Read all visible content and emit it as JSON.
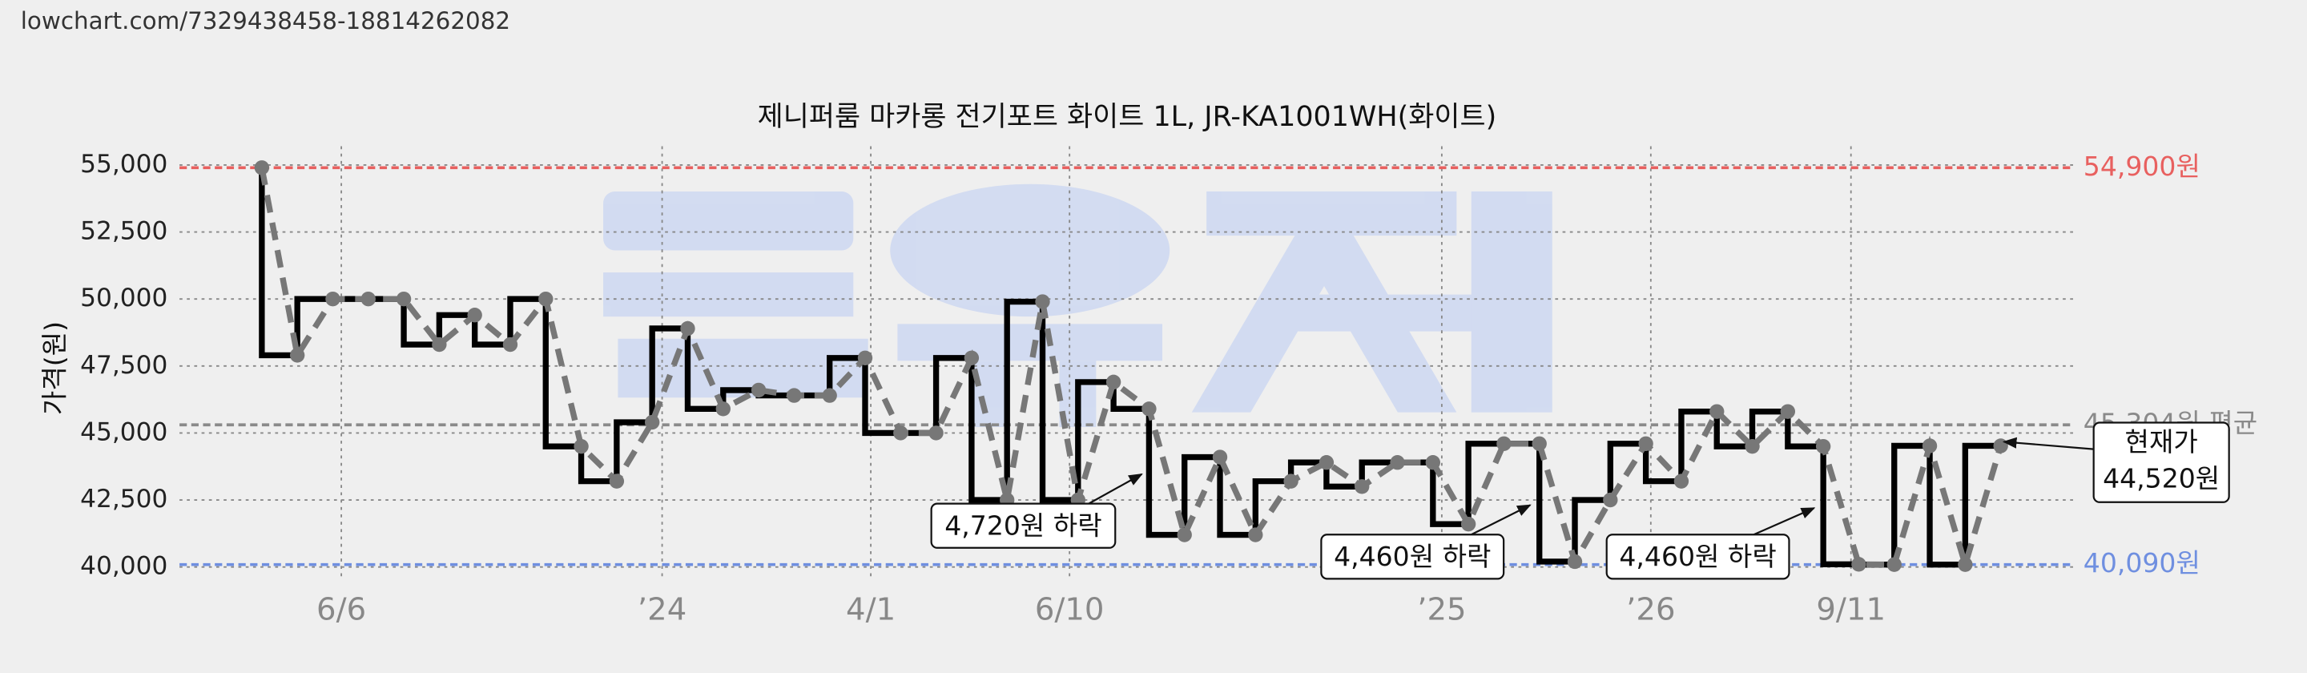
{
  "chart_data": {
    "type": "step-line",
    "source_url": "lowchart.com/7329438458-18814262082",
    "title": "제니퍼룸 마카롱 전기포트 화이트 1L, JR-KA1001WH(화이트)",
    "y_label": "가격(원)",
    "x": [
      0,
      1,
      2,
      3,
      4,
      5,
      6,
      7,
      8,
      9,
      10,
      11,
      12,
      13,
      14,
      15,
      16,
      17,
      18,
      19,
      20,
      21,
      22,
      23,
      24,
      25,
      26,
      27,
      28,
      29,
      30,
      31,
      32,
      33,
      34,
      35,
      36,
      37,
      38,
      39,
      40,
      41,
      42,
      43,
      44,
      45,
      46,
      47,
      48,
      49
    ],
    "values": [
      54900,
      47900,
      50000,
      50000,
      50000,
      48300,
      49400,
      48300,
      50000,
      44500,
      43200,
      45400,
      48900,
      45900,
      46600,
      46400,
      46400,
      47800,
      45000,
      45000,
      47800,
      42500,
      49900,
      42500,
      46900,
      45900,
      41200,
      44100,
      41200,
      43200,
      43900,
      43000,
      43900,
      43900,
      41600,
      44600,
      44600,
      40200,
      42500,
      44600,
      43200,
      45800,
      44500,
      45800,
      44500,
      40100,
      40090,
      44520,
      40090,
      44520
    ],
    "xlim": [
      -2.32,
      51.08
    ],
    "xticks": [
      {
        "value": 2.24,
        "label": "6/6"
      },
      {
        "value": 11.28,
        "label": "’24"
      },
      {
        "value": 17.16,
        "label": "4/1"
      },
      {
        "value": 22.76,
        "label": "6/10"
      },
      {
        "value": 33.25,
        "label": "’25"
      },
      {
        "value": 39.14,
        "label": "’26"
      },
      {
        "value": 44.78,
        "label": "9/11"
      }
    ],
    "ylim": [
      39500,
      55700
    ],
    "yticks": [
      {
        "value": 40000,
        "label": "40,000"
      },
      {
        "value": 42500,
        "label": "42,500"
      },
      {
        "value": 45000,
        "label": "45,000"
      },
      {
        "value": 47500,
        "label": "47,500"
      },
      {
        "value": 50000,
        "label": "50,000"
      },
      {
        "value": 52500,
        "label": "52,500"
      },
      {
        "value": 55000,
        "label": "55,000"
      }
    ],
    "grid": true,
    "reference_lines": [
      {
        "value": 54900,
        "label": "54,900원",
        "color": "#e8605f"
      },
      {
        "value": 45304,
        "label": "45,304원 평균",
        "color": "#8a8a8a"
      },
      {
        "value": 40090,
        "label": "40,090원",
        "color": "#6f8fe0"
      }
    ],
    "annotations": [
      {
        "text": "4,720원 하락"
      },
      {
        "text": "4,460원 하락"
      },
      {
        "text": "4,460원 하락"
      },
      {
        "lines": [
          "현재가",
          "44,520원"
        ]
      }
    ]
  }
}
